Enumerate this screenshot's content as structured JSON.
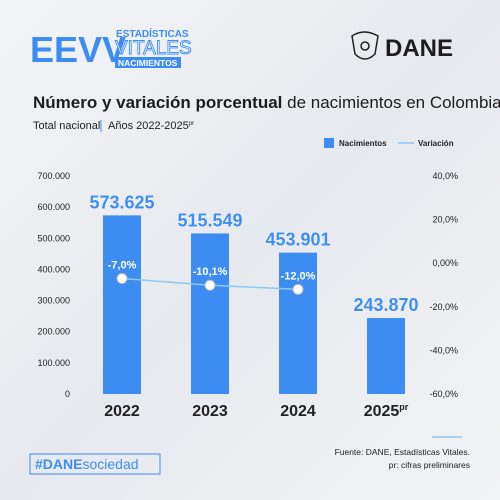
{
  "header": {
    "logo_big": "EEVV",
    "logo_line1": "ESTADÍSTICAS",
    "logo_line2": "VITALES",
    "logo_line3": "NACIMIENTOS",
    "brand": "DANE"
  },
  "chart_data": {
    "type": "bar_line",
    "title_bold": "Número y variación porcentual",
    "title_rest": " de nacimientos en Colombia",
    "subtitle": "Total nacional",
    "years": "Años 2022-2025",
    "years_superscript": "pr",
    "categories": [
      "2022",
      "2023",
      "2024",
      "2025"
    ],
    "category_superscripts": [
      null,
      null,
      null,
      "pr"
    ],
    "series": [
      {
        "name": "Nacimientos",
        "color": "#3d8cf2",
        "values": [
          573625,
          515549,
          453901,
          243870
        ],
        "value_labels": [
          "573.625",
          "515.549",
          "453.901",
          "243.870"
        ]
      },
      {
        "name": "Variación",
        "color": "#8cc8f0",
        "axis": "y2",
        "values": [
          -7.0,
          -10.1,
          -12.0,
          null
        ],
        "value_labels": [
          "-7,0%",
          "-10,1%",
          "-12,0%",
          null
        ]
      }
    ],
    "ylim": [
      0,
      700000
    ],
    "yticks": [
      0,
      {
        "value": 100000,
        "label": "100.000"
      },
      {
        "value": 200000,
        "label": "200.000"
      },
      {
        "value": 300000,
        "label": "300.000"
      },
      {
        "value": 400000,
        "label": "400.000"
      },
      {
        "value": 500000,
        "label": "500.000"
      },
      {
        "value": 600000,
        "label": "600.000"
      },
      {
        "value": 700000,
        "label": "700.000"
      }
    ],
    "y2lim": [
      -60,
      40
    ],
    "y2ticks": [
      {
        "value": -60,
        "label": "-60,0%"
      },
      {
        "value": -40,
        "label": "-40,0%"
      },
      {
        "value": -20,
        "label": "-20,0%"
      },
      {
        "value": 0,
        "label": "0,00%"
      },
      {
        "value": 20,
        "label": "20,0%"
      },
      {
        "value": 40,
        "label": "40,0%"
      }
    ],
    "legend": "top-right"
  },
  "footer": {
    "hashtag_bold": "#DANE",
    "hashtag_rest": "sociedad",
    "source": "Fuente: DANE, Estadísticas Vitales.",
    "note": "pr: cifras preliminares"
  }
}
